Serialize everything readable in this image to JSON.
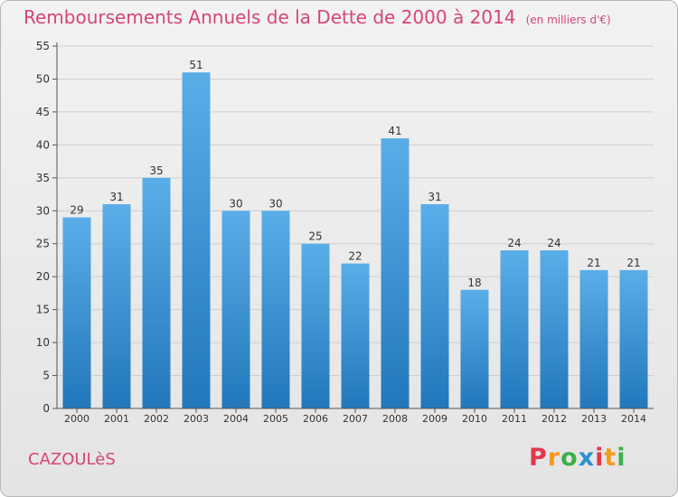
{
  "title": "Remboursements Annuels de la Dette de 2000 à 2014",
  "unit_note": "(en milliers d'€)",
  "commune": "CAZOULèS",
  "brand": {
    "letters": [
      "P",
      "r",
      "o",
      "x",
      "i",
      "t",
      "i"
    ],
    "colors": [
      "#e2384d",
      "#f39a20",
      "#3db04a",
      "#2c8fd3",
      "#e2384d",
      "#f39a20",
      "#3db04a"
    ]
  },
  "colors": {
    "accent": "#d6457a",
    "bar_light": "#5aaee8",
    "bar_dark": "#2277bb",
    "grid": "#cfcfcf",
    "axis": "#555555"
  },
  "chart_data": {
    "type": "bar",
    "categories": [
      "2000",
      "2001",
      "2002",
      "2003",
      "2004",
      "2005",
      "2006",
      "2007",
      "2008",
      "2009",
      "2010",
      "2011",
      "2012",
      "2013",
      "2014"
    ],
    "values": [
      29,
      31,
      35,
      51,
      30,
      30,
      25,
      22,
      41,
      31,
      18,
      24,
      24,
      21,
      21
    ],
    "ylim": [
      0,
      55
    ],
    "yticks": [
      0,
      5,
      10,
      15,
      20,
      25,
      30,
      35,
      40,
      45,
      50,
      55
    ],
    "grid": true,
    "data_labels": true
  }
}
